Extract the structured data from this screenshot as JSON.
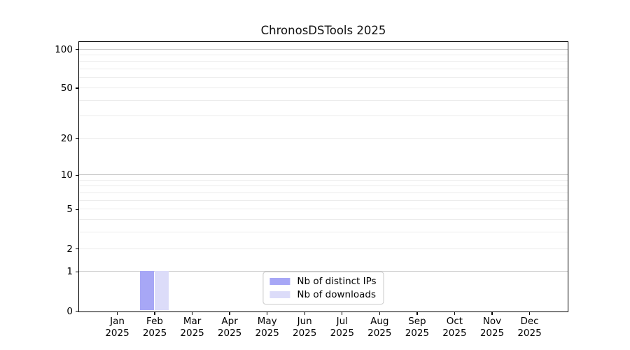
{
  "figure": {
    "background": "#ffffff"
  },
  "chart_data": {
    "type": "bar",
    "title": "ChronosDSTools 2025",
    "xlabel": "",
    "ylabel": "",
    "x": {
      "categories": [
        "Jan",
        "Feb",
        "Mar",
        "Apr",
        "May",
        "Jun",
        "Jul",
        "Aug",
        "Sep",
        "Oct",
        "Nov",
        "Dec"
      ],
      "year_label": "2025"
    },
    "y": {
      "scale": "log1p",
      "lim": [
        0,
        113
      ],
      "ticks": [
        0,
        1,
        2,
        5,
        10,
        20,
        50,
        100
      ],
      "major_gridlines": [
        1,
        10,
        100
      ],
      "minor_gridlines": [
        2,
        3,
        4,
        5,
        6,
        7,
        8,
        9,
        20,
        30,
        40,
        50,
        60,
        70,
        80,
        90
      ]
    },
    "series": [
      {
        "name": "Nb of distinct IPs",
        "color": "#a7a7f6",
        "values": [
          0,
          1,
          0,
          0,
          0,
          0,
          0,
          0,
          0,
          0,
          0,
          0
        ]
      },
      {
        "name": "Nb of downloads",
        "color": "#dcdcf9",
        "values": [
          0,
          1,
          0,
          0,
          0,
          0,
          0,
          0,
          0,
          0,
          0,
          0
        ]
      }
    ],
    "legend": {
      "position": "lower center"
    },
    "colors": {
      "grid_major": "#c8c8c8",
      "grid_minor": "#ececec",
      "spine": "#000000",
      "text": "#000000",
      "legend_border": "#cccccc",
      "legend_bg": "#ffffff"
    },
    "grid": true
  }
}
